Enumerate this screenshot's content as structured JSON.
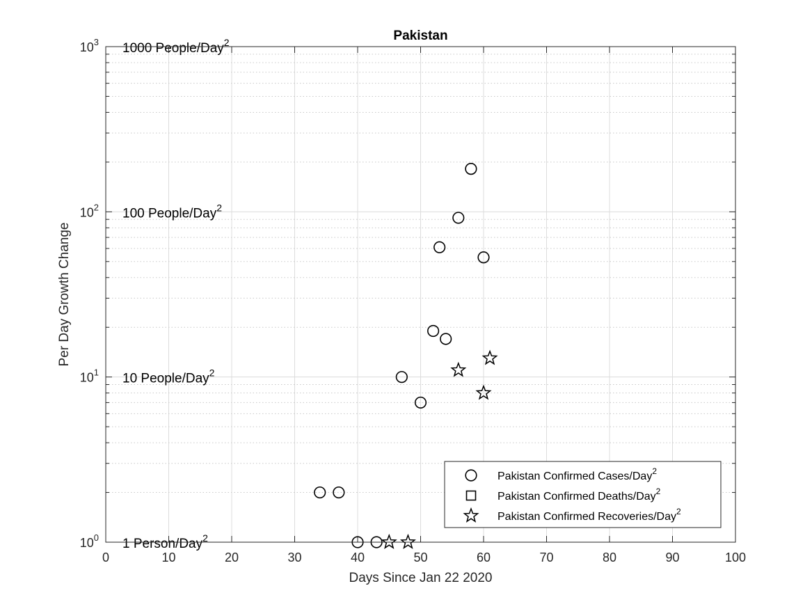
{
  "chart_data": {
    "type": "scatter",
    "title": "Pakistan",
    "xlabel": "Days Since Jan 22 2020",
    "ylabel": "Per Day Growth Change",
    "xlim": [
      0,
      100
    ],
    "ylim": [
      1,
      1000
    ],
    "yscale": "log",
    "xticks": [
      0,
      10,
      20,
      30,
      40,
      50,
      60,
      70,
      80,
      90,
      100
    ],
    "yticks": [
      {
        "value": 1,
        "base": "10",
        "exp": "0"
      },
      {
        "value": 10,
        "base": "10",
        "exp": "1"
      },
      {
        "value": 100,
        "base": "10",
        "exp": "2"
      },
      {
        "value": 1000,
        "base": "10",
        "exp": "3"
      }
    ],
    "grid": true,
    "annotations": [
      {
        "text": "1 Person/Day",
        "sup": "2",
        "y": 1
      },
      {
        "text": "10 People/Day",
        "sup": "2",
        "y": 10
      },
      {
        "text": "100 People/Day",
        "sup": "2",
        "y": 100
      },
      {
        "text": "1000 People/Day",
        "sup": "2",
        "y": 1000
      }
    ],
    "legend_position": "bottom-right",
    "series": [
      {
        "name": "Pakistan Confirmed Cases/Day",
        "name_sup": "2",
        "marker": "circle",
        "points": [
          [
            34,
            2
          ],
          [
            37,
            2
          ],
          [
            40,
            1
          ],
          [
            43,
            1
          ],
          [
            47,
            10
          ],
          [
            50,
            7
          ],
          [
            52,
            19
          ],
          [
            53,
            61
          ],
          [
            54,
            17
          ],
          [
            56,
            92
          ],
          [
            58,
            182
          ],
          [
            60,
            53
          ]
        ]
      },
      {
        "name": "Pakistan Confirmed Deaths/Day",
        "name_sup": "2",
        "marker": "square",
        "points": []
      },
      {
        "name": "Pakistan Confirmed Recoveries/Day",
        "name_sup": "2",
        "marker": "star",
        "points": [
          [
            45,
            1
          ],
          [
            48,
            1
          ],
          [
            56,
            11
          ],
          [
            60,
            8
          ],
          [
            61,
            13
          ]
        ]
      }
    ]
  }
}
